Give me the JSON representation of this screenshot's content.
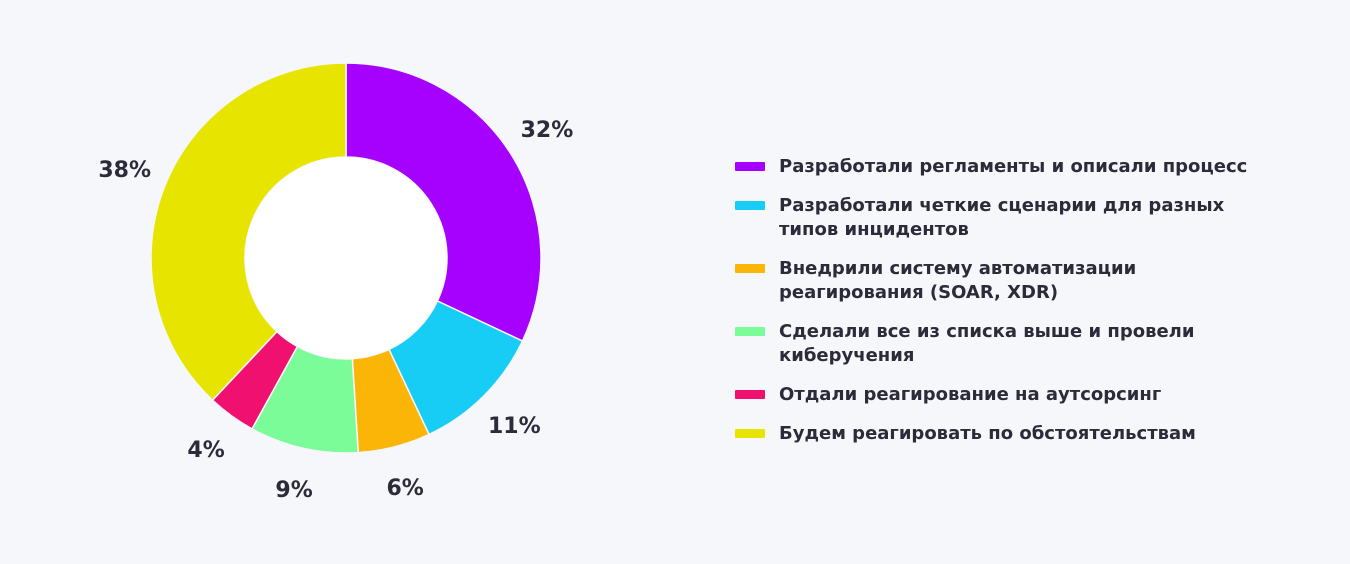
{
  "chart_data": {
    "type": "pie",
    "categories": [
      "Разработали регламенты и описали процесс",
      "Разработали четкие сценарии для разных типов инцидентов",
      "Внедрили систему автоматизации реагирования (SOAR, XDR)",
      "Сделали все из списка выше и провели киберучения",
      "Отдали реагирование на аутсорсинг",
      "Будем реагировать по обстоятельствам"
    ],
    "values": [
      32,
      11,
      6,
      9,
      4,
      38
    ],
    "value_labels": [
      "32%",
      "11%",
      "6%",
      "9%",
      "4%",
      "38%"
    ],
    "colors": [
      "#a600ff",
      "#17cdf5",
      "#fbb507",
      "#7cfb99",
      "#f0106f",
      "#e7e500"
    ],
    "title": "",
    "donut": true,
    "legend_position": "right"
  }
}
